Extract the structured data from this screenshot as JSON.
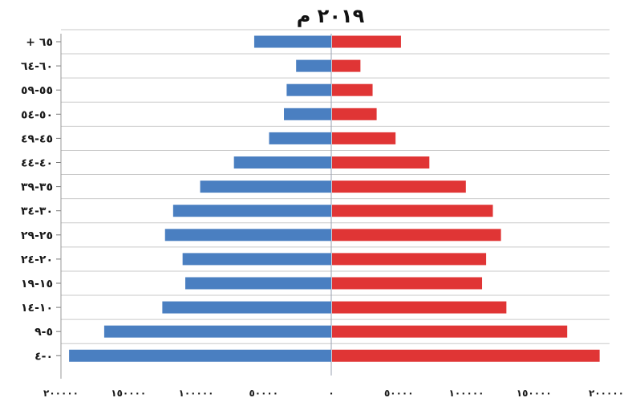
{
  "chart_data": {
    "type": "bar",
    "orientation": "horizontal",
    "layout": "population-pyramid",
    "title": "٢٠١٩ م",
    "categories": [
      "٠-٤",
      "٥-٩",
      "١٠-١٤",
      "١٥-١٩",
      "٢٠-٢٤",
      "٢٥-٢٩",
      "٣٠-٣٤",
      "٣٥-٣٩",
      "٤٠-٤٤",
      "٤٥-٤٩",
      "٥٠-٥٤",
      "٥٥-٥٩",
      "٦٠-٦٤",
      "+ ٦٥"
    ],
    "series": [
      {
        "color": "#4a7fc1",
        "side": "left",
        "values": [
          194000,
          168000,
          125000,
          108000,
          110000,
          123000,
          117000,
          97000,
          72000,
          46000,
          35000,
          33000,
          26000,
          57000
        ]
      },
      {
        "color": "#e03535",
        "side": "right",
        "values": [
          198000,
          174000,
          129000,
          111000,
          114000,
          125000,
          119000,
          99000,
          72000,
          47000,
          33000,
          30000,
          21000,
          51000
        ]
      }
    ],
    "xlim": [
      -200000,
      200000
    ],
    "x_ticks": [
      -200000,
      -150000,
      -100000,
      -50000,
      0,
      50000,
      100000,
      150000,
      200000
    ],
    "x_tick_labels": [
      "٢٠٠٠٠٠",
      "١٥٠٠٠٠",
      "١٠٠٠٠٠",
      "٥٠٠٠٠",
      "٠",
      "٥٠٠٠٠",
      "١٠٠٠٠٠",
      "١٥٠٠٠٠",
      "٢٠٠٠٠٠"
    ],
    "grid": true,
    "legend": "none"
  }
}
